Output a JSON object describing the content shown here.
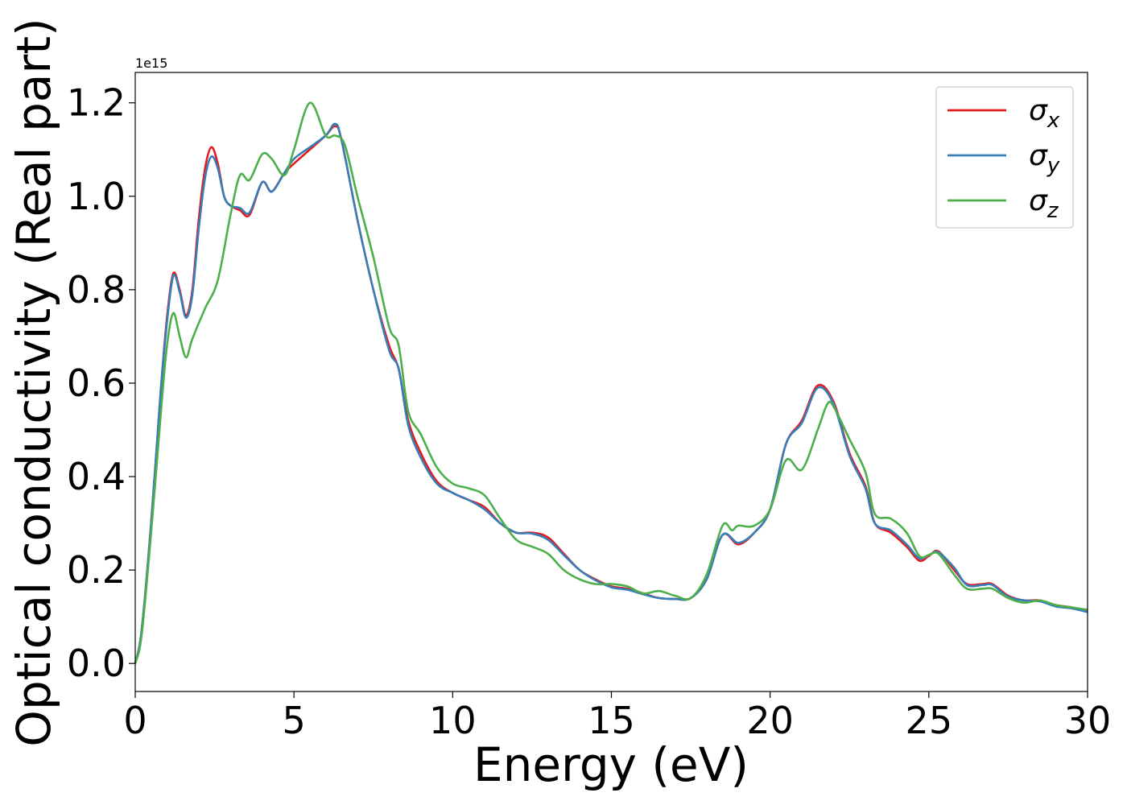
{
  "chart_data": {
    "type": "line",
    "xlabel": "Energy (eV)",
    "ylabel": "Optical conductivity (Real part)",
    "y_offset_text": "1e15",
    "xlim": [
      0,
      30
    ],
    "ylim": [
      -0.06,
      1.265
    ],
    "x_ticks": [
      0,
      5,
      10,
      15,
      20,
      25,
      30
    ],
    "x_tick_labels": [
      "0",
      "5",
      "10",
      "15",
      "20",
      "25",
      "30"
    ],
    "y_ticks": [
      0.0,
      0.2,
      0.4,
      0.6,
      0.8,
      1.0,
      1.2
    ],
    "y_tick_labels": [
      "0.0",
      "0.2",
      "0.4",
      "0.6",
      "0.8",
      "1.0",
      "1.2"
    ],
    "grid": false,
    "legend_position": "top-right",
    "series": [
      {
        "name": "σ",
        "subscript": "x",
        "color": "#e41a1c",
        "points": [
          [
            0,
            0
          ],
          [
            0.2,
            0.07
          ],
          [
            0.5,
            0.3
          ],
          [
            0.8,
            0.58
          ],
          [
            1.0,
            0.74
          ],
          [
            1.2,
            0.835
          ],
          [
            1.4,
            0.8
          ],
          [
            1.6,
            0.745
          ],
          [
            1.8,
            0.8
          ],
          [
            2.0,
            0.95
          ],
          [
            2.2,
            1.06
          ],
          [
            2.4,
            1.105
          ],
          [
            2.6,
            1.07
          ],
          [
            2.8,
            1.0
          ],
          [
            3.0,
            0.98
          ],
          [
            3.3,
            0.97
          ],
          [
            3.6,
            0.96
          ],
          [
            4.0,
            1.03
          ],
          [
            4.3,
            1.01
          ],
          [
            4.7,
            1.05
          ],
          [
            5.0,
            1.07
          ],
          [
            5.5,
            1.1
          ],
          [
            6.0,
            1.13
          ],
          [
            6.3,
            1.15
          ],
          [
            6.5,
            1.12
          ],
          [
            7.0,
            0.95
          ],
          [
            7.5,
            0.8
          ],
          [
            8.0,
            0.68
          ],
          [
            8.3,
            0.63
          ],
          [
            8.6,
            0.52
          ],
          [
            9.0,
            0.45
          ],
          [
            9.5,
            0.39
          ],
          [
            10.0,
            0.365
          ],
          [
            10.5,
            0.35
          ],
          [
            11.0,
            0.335
          ],
          [
            11.5,
            0.3
          ],
          [
            12.0,
            0.28
          ],
          [
            12.5,
            0.28
          ],
          [
            13.0,
            0.27
          ],
          [
            13.5,
            0.235
          ],
          [
            14.0,
            0.2
          ],
          [
            14.5,
            0.18
          ],
          [
            15.0,
            0.165
          ],
          [
            15.5,
            0.16
          ],
          [
            16.0,
            0.15
          ],
          [
            16.5,
            0.14
          ],
          [
            17.0,
            0.138
          ],
          [
            17.5,
            0.14
          ],
          [
            18.0,
            0.18
          ],
          [
            18.5,
            0.275
          ],
          [
            19.0,
            0.255
          ],
          [
            19.5,
            0.28
          ],
          [
            20.0,
            0.33
          ],
          [
            20.5,
            0.47
          ],
          [
            21.0,
            0.52
          ],
          [
            21.5,
            0.595
          ],
          [
            22.0,
            0.56
          ],
          [
            22.5,
            0.45
          ],
          [
            23.0,
            0.38
          ],
          [
            23.3,
            0.3
          ],
          [
            23.8,
            0.28
          ],
          [
            24.3,
            0.25
          ],
          [
            24.7,
            0.22
          ],
          [
            25.0,
            0.23
          ],
          [
            25.3,
            0.24
          ],
          [
            25.8,
            0.2
          ],
          [
            26.2,
            0.17
          ],
          [
            26.7,
            0.17
          ],
          [
            27.0,
            0.17
          ],
          [
            27.5,
            0.145
          ],
          [
            28.0,
            0.135
          ],
          [
            28.5,
            0.135
          ],
          [
            29.0,
            0.125
          ],
          [
            29.5,
            0.12
          ],
          [
            30.0,
            0.11
          ]
        ]
      },
      {
        "name": "σ",
        "subscript": "y",
        "color": "#377eb8",
        "points": [
          [
            0,
            0
          ],
          [
            0.2,
            0.07
          ],
          [
            0.5,
            0.3
          ],
          [
            0.8,
            0.58
          ],
          [
            1.0,
            0.73
          ],
          [
            1.2,
            0.83
          ],
          [
            1.4,
            0.795
          ],
          [
            1.6,
            0.74
          ],
          [
            1.8,
            0.79
          ],
          [
            2.0,
            0.93
          ],
          [
            2.2,
            1.04
          ],
          [
            2.4,
            1.085
          ],
          [
            2.6,
            1.06
          ],
          [
            2.8,
            1.0
          ],
          [
            3.0,
            0.98
          ],
          [
            3.3,
            0.975
          ],
          [
            3.6,
            0.965
          ],
          [
            4.0,
            1.03
          ],
          [
            4.3,
            1.01
          ],
          [
            4.7,
            1.05
          ],
          [
            5.0,
            1.08
          ],
          [
            5.5,
            1.105
          ],
          [
            6.0,
            1.13
          ],
          [
            6.3,
            1.155
          ],
          [
            6.5,
            1.12
          ],
          [
            7.0,
            0.95
          ],
          [
            7.5,
            0.8
          ],
          [
            8.0,
            0.67
          ],
          [
            8.3,
            0.63
          ],
          [
            8.6,
            0.51
          ],
          [
            9.0,
            0.44
          ],
          [
            9.5,
            0.385
          ],
          [
            10.0,
            0.365
          ],
          [
            10.5,
            0.35
          ],
          [
            11.0,
            0.33
          ],
          [
            11.5,
            0.3
          ],
          [
            12.0,
            0.28
          ],
          [
            12.5,
            0.278
          ],
          [
            13.0,
            0.265
          ],
          [
            13.5,
            0.232
          ],
          [
            14.0,
            0.2
          ],
          [
            14.5,
            0.178
          ],
          [
            15.0,
            0.163
          ],
          [
            15.5,
            0.158
          ],
          [
            16.0,
            0.148
          ],
          [
            16.5,
            0.14
          ],
          [
            17.0,
            0.138
          ],
          [
            17.5,
            0.14
          ],
          [
            18.0,
            0.18
          ],
          [
            18.5,
            0.275
          ],
          [
            19.0,
            0.258
          ],
          [
            19.5,
            0.28
          ],
          [
            20.0,
            0.33
          ],
          [
            20.5,
            0.47
          ],
          [
            21.0,
            0.515
          ],
          [
            21.5,
            0.59
          ],
          [
            22.0,
            0.555
          ],
          [
            22.5,
            0.445
          ],
          [
            23.0,
            0.375
          ],
          [
            23.3,
            0.3
          ],
          [
            23.8,
            0.285
          ],
          [
            24.3,
            0.255
          ],
          [
            24.7,
            0.225
          ],
          [
            25.0,
            0.232
          ],
          [
            25.3,
            0.238
          ],
          [
            25.8,
            0.205
          ],
          [
            26.2,
            0.168
          ],
          [
            26.7,
            0.168
          ],
          [
            27.0,
            0.168
          ],
          [
            27.5,
            0.143
          ],
          [
            28.0,
            0.135
          ],
          [
            28.5,
            0.133
          ],
          [
            29.0,
            0.122
          ],
          [
            29.5,
            0.118
          ],
          [
            30.0,
            0.11
          ]
        ]
      },
      {
        "name": "σ",
        "subscript": "z",
        "color": "#4daf4a",
        "points": [
          [
            0,
            0
          ],
          [
            0.2,
            0.06
          ],
          [
            0.5,
            0.28
          ],
          [
            0.8,
            0.53
          ],
          [
            1.0,
            0.68
          ],
          [
            1.2,
            0.75
          ],
          [
            1.4,
            0.7
          ],
          [
            1.6,
            0.655
          ],
          [
            1.8,
            0.695
          ],
          [
            2.2,
            0.76
          ],
          [
            2.6,
            0.82
          ],
          [
            3.0,
            0.96
          ],
          [
            3.3,
            1.045
          ],
          [
            3.6,
            1.035
          ],
          [
            4.0,
            1.09
          ],
          [
            4.3,
            1.08
          ],
          [
            4.7,
            1.045
          ],
          [
            5.0,
            1.1
          ],
          [
            5.5,
            1.2
          ],
          [
            6.0,
            1.13
          ],
          [
            6.3,
            1.13
          ],
          [
            6.6,
            1.11
          ],
          [
            7.0,
            1.0
          ],
          [
            7.5,
            0.87
          ],
          [
            8.0,
            0.72
          ],
          [
            8.3,
            0.68
          ],
          [
            8.6,
            0.54
          ],
          [
            9.0,
            0.49
          ],
          [
            9.5,
            0.42
          ],
          [
            10.0,
            0.385
          ],
          [
            10.5,
            0.375
          ],
          [
            11.0,
            0.36
          ],
          [
            11.5,
            0.31
          ],
          [
            12.0,
            0.265
          ],
          [
            12.5,
            0.25
          ],
          [
            13.0,
            0.235
          ],
          [
            13.5,
            0.2
          ],
          [
            14.0,
            0.18
          ],
          [
            14.5,
            0.17
          ],
          [
            15.0,
            0.17
          ],
          [
            15.5,
            0.165
          ],
          [
            16.0,
            0.15
          ],
          [
            16.5,
            0.155
          ],
          [
            17.0,
            0.145
          ],
          [
            17.5,
            0.14
          ],
          [
            18.0,
            0.19
          ],
          [
            18.5,
            0.295
          ],
          [
            18.8,
            0.285
          ],
          [
            19.0,
            0.295
          ],
          [
            19.5,
            0.295
          ],
          [
            20.0,
            0.33
          ],
          [
            20.5,
            0.435
          ],
          [
            21.0,
            0.415
          ],
          [
            21.5,
            0.5
          ],
          [
            21.8,
            0.555
          ],
          [
            22.0,
            0.55
          ],
          [
            22.5,
            0.48
          ],
          [
            23.0,
            0.41
          ],
          [
            23.3,
            0.32
          ],
          [
            23.8,
            0.31
          ],
          [
            24.3,
            0.28
          ],
          [
            24.7,
            0.23
          ],
          [
            25.0,
            0.232
          ],
          [
            25.3,
            0.235
          ],
          [
            25.8,
            0.19
          ],
          [
            26.2,
            0.16
          ],
          [
            26.7,
            0.16
          ],
          [
            27.0,
            0.16
          ],
          [
            27.5,
            0.14
          ],
          [
            28.0,
            0.13
          ],
          [
            28.5,
            0.135
          ],
          [
            29.0,
            0.125
          ],
          [
            29.5,
            0.12
          ],
          [
            30.0,
            0.115
          ]
        ]
      }
    ]
  }
}
